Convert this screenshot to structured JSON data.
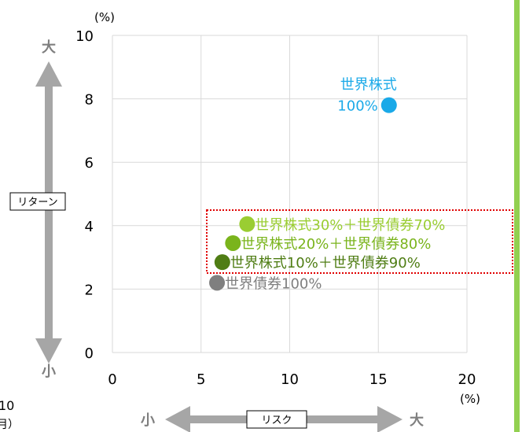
{
  "chart_data": {
    "type": "scatter",
    "xlim": [
      0,
      20
    ],
    "ylim": [
      0,
      10
    ],
    "x_ticks": [
      "0",
      "5",
      "10",
      "15",
      "20"
    ],
    "y_ticks": [
      "0",
      "2",
      "4",
      "6",
      "8",
      "10"
    ],
    "x_unit": "(%)",
    "y_unit": "(%)",
    "grid": true,
    "points": [
      {
        "label_line1": "世界株式",
        "label_line2": "100%",
        "x": 15.6,
        "y": 7.8,
        "color": "#1aa9e8"
      },
      {
        "label": "世界株式30%＋世界債券70%",
        "x": 7.6,
        "y": 4.05,
        "color": "#9acd32"
      },
      {
        "label": "世界株式20%＋世界債券80%",
        "x": 6.8,
        "y": 3.45,
        "color": "#7ab41c"
      },
      {
        "label": "世界株式10%＋世界債券90%",
        "x": 6.2,
        "y": 2.85,
        "color": "#4f7d14"
      },
      {
        "label": "世界債券100%",
        "x": 5.9,
        "y": 2.2,
        "color": "#7f7f7f"
      }
    ],
    "y_axis_label": "リターン",
    "x_axis_label": "リスク",
    "y_high": "大",
    "y_low": "小",
    "x_high": "大",
    "x_low": "小"
  },
  "cut_text": {
    "line1": "10",
    "line2": "月）"
  },
  "colors": {
    "arrow": "#a6a6a6",
    "grid": "#d9d9d9",
    "highlight_box": "#e00000",
    "accent_bar": "#92d050"
  }
}
